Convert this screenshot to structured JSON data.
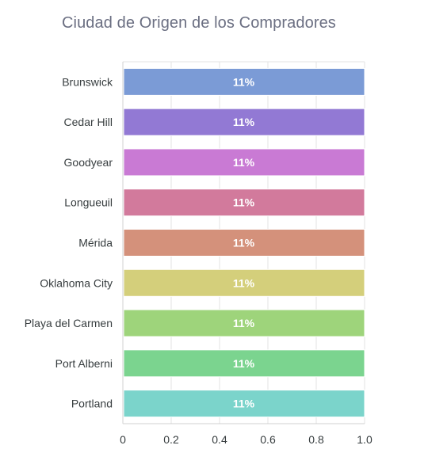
{
  "chart_data": {
    "type": "bar",
    "orientation": "horizontal",
    "title": "Ciudad de Origen de los Compradores",
    "categories": [
      "Brunswick",
      "Cedar Hill",
      "Goodyear",
      "Longueuil",
      "Mérida",
      "Oklahoma City",
      "Playa del Carmen",
      "Port Alberni",
      "Portland"
    ],
    "values": [
      1,
      1,
      1,
      1,
      1,
      1,
      1,
      1,
      1
    ],
    "data_labels": [
      "11%",
      "11%",
      "11%",
      "11%",
      "11%",
      "11%",
      "11%",
      "11%",
      "11%"
    ],
    "colors": [
      "#7b9bd6",
      "#9279d4",
      "#c97ad4",
      "#d27a9c",
      "#d4917b",
      "#d4cf7b",
      "#9ed47b",
      "#7bd48f",
      "#7bd4cb"
    ],
    "xlim": [
      0,
      1.0
    ],
    "xticks": [
      "0",
      "0.2",
      "0.4",
      "0.6",
      "0.8",
      "1.0"
    ],
    "xtick_values": [
      0,
      0.2,
      0.4,
      0.6,
      0.8,
      1.0
    ],
    "grid": true,
    "legend": "none"
  }
}
